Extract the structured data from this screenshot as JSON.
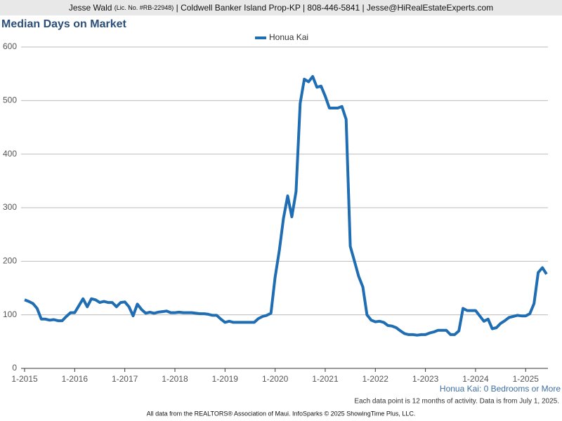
{
  "header": {
    "name": "Jesse Wald",
    "license": "(Lic. No. #RB-22948)",
    "rest": "| Coldwell Banker Island Prop-KP | 808-446-5841 | Jesse@HiRealEstateExperts.com"
  },
  "chart_data": {
    "type": "line",
    "title": "Median Days on Market",
    "categories": [
      "1-2015",
      null,
      null,
      null,
      null,
      null,
      null,
      null,
      null,
      null,
      null,
      null,
      "1-2016",
      null,
      null,
      null,
      null,
      null,
      null,
      null,
      null,
      null,
      null,
      null,
      "1-2017",
      null,
      null,
      null,
      null,
      null,
      null,
      null,
      null,
      null,
      null,
      null,
      "1-2018",
      null,
      null,
      null,
      null,
      null,
      null,
      null,
      null,
      null,
      null,
      null,
      "1-2019",
      null,
      null,
      null,
      null,
      null,
      null,
      null,
      null,
      null,
      null,
      null,
      "1-2020",
      null,
      null,
      null,
      null,
      null,
      null,
      null,
      null,
      null,
      null,
      null,
      "1-2021",
      null,
      null,
      null,
      null,
      null,
      null,
      null,
      null,
      null,
      null,
      null,
      "1-2022",
      null,
      null,
      null,
      null,
      null,
      null,
      null,
      null,
      null,
      null,
      null,
      "1-2023",
      null,
      null,
      null,
      null,
      null,
      null,
      null,
      null,
      null,
      null,
      null,
      "1-2024",
      null,
      null,
      null,
      null,
      null,
      null,
      null,
      null,
      null,
      null,
      null,
      "1-2025",
      null,
      null,
      null,
      null,
      null
    ],
    "series": [
      {
        "name": "Honua Kai",
        "color": "#1f6db3",
        "values": [
          128,
          125,
          121,
          112,
          92,
          92,
          90,
          91,
          89,
          89,
          97,
          104,
          104,
          117,
          130,
          115,
          130,
          128,
          123,
          125,
          123,
          123,
          115,
          123,
          124,
          115,
          98,
          120,
          110,
          103,
          105,
          103,
          105,
          106,
          107,
          104,
          104,
          105,
          104,
          104,
          104,
          103,
          102,
          102,
          101,
          99,
          99,
          92,
          86,
          88,
          86,
          86,
          86,
          86,
          86,
          86,
          93,
          97,
          99,
          103,
          170,
          220,
          280,
          322,
          283,
          330,
          495,
          540,
          535,
          545,
          525,
          527,
          508,
          486,
          486,
          486,
          489,
          465,
          228,
          200,
          172,
          152,
          100,
          90,
          87,
          88,
          86,
          80,
          79,
          76,
          70,
          65,
          63,
          63,
          62,
          63,
          63,
          66,
          68,
          71,
          71,
          71,
          63,
          63,
          70,
          112,
          108,
          108,
          108,
          98,
          88,
          92,
          74,
          76,
          84,
          89,
          95,
          97,
          99,
          98,
          98,
          102,
          121,
          179,
          188,
          176
        ]
      }
    ],
    "ylim": [
      0,
      600
    ],
    "yticks": [
      0,
      100,
      200,
      300,
      400,
      500,
      600
    ],
    "grid": true,
    "legend": "top",
    "subtitle": "Honua Kai: 0 Bedrooms or More"
  },
  "footer": {
    "note": "Each data point is 12 months of activity. Data is from July 1, 2025.",
    "source": "All data from the REALTORS® Association of Maui. InfoSparks © 2025 ShowingTime Plus, LLC."
  }
}
